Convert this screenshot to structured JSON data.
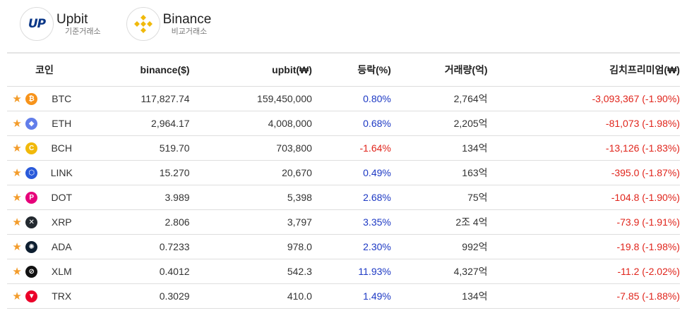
{
  "exchanges": [
    {
      "name": "Upbit",
      "sub": "기준거래소",
      "logo": "upbit-logo",
      "logo_text": "UP"
    },
    {
      "name": "Binance",
      "sub": "비교거래소",
      "logo": "binance-logo"
    }
  ],
  "table": {
    "headers": {
      "coin": "코인",
      "binance": "binance($)",
      "upbit": "upbit(₩)",
      "change": "등락(%)",
      "volume": "거래량(억)",
      "premium": "김치프리미엄(₩)"
    },
    "rows": [
      {
        "symbol": "BTC",
        "icon": "btc-icon",
        "icon_color": "#f7931a",
        "glyph": "₿",
        "binance": "117,827.74",
        "upbit": "159,450,000",
        "change": "0.80%",
        "change_dir": "pos",
        "volume": "2,764억",
        "premium": "-3,093,367 (-1.90%)"
      },
      {
        "symbol": "ETH",
        "icon": "eth-icon",
        "icon_color": "#627eea",
        "glyph": "◆",
        "binance": "2,964.17",
        "upbit": "4,008,000",
        "change": "0.68%",
        "change_dir": "pos",
        "volume": "2,205억",
        "premium": "-81,073 (-1.98%)"
      },
      {
        "symbol": "BCH",
        "icon": "bch-icon",
        "icon_color": "#f1b90b",
        "glyph": "C",
        "binance": "519.70",
        "upbit": "703,800",
        "change": "-1.64%",
        "change_dir": "neg",
        "volume": "134억",
        "premium": "-13,126 (-1.83%)"
      },
      {
        "symbol": "LINK",
        "icon": "link-icon",
        "icon_color": "#2a5ada",
        "glyph": "⬡",
        "binance": "15.270",
        "upbit": "20,670",
        "change": "0.49%",
        "change_dir": "pos",
        "volume": "163억",
        "premium": "-395.0 (-1.87%)"
      },
      {
        "symbol": "DOT",
        "icon": "dot-icon",
        "icon_color": "#e6007a",
        "glyph": "P",
        "binance": "3.989",
        "upbit": "5,398",
        "change": "2.68%",
        "change_dir": "pos",
        "volume": "75억",
        "premium": "-104.8 (-1.90%)"
      },
      {
        "symbol": "XRP",
        "icon": "xrp-icon",
        "icon_color": "#23292f",
        "glyph": "✕",
        "binance": "2.806",
        "upbit": "3,797",
        "change": "3.35%",
        "change_dir": "pos",
        "volume": "2조 4억",
        "premium": "-73.9 (-1.91%)"
      },
      {
        "symbol": "ADA",
        "icon": "ada-icon",
        "icon_color": "#0d1e30",
        "glyph": "✺",
        "binance": "0.7233",
        "upbit": "978.0",
        "change": "2.30%",
        "change_dir": "pos",
        "volume": "992억",
        "premium": "-19.8 (-1.98%)"
      },
      {
        "symbol": "XLM",
        "icon": "xlm-icon",
        "icon_color": "#111111",
        "glyph": "⊘",
        "binance": "0.4012",
        "upbit": "542.3",
        "change": "11.93%",
        "change_dir": "pos",
        "volume": "4,327억",
        "premium": "-11.2 (-2.02%)"
      },
      {
        "symbol": "TRX",
        "icon": "trx-icon",
        "icon_color": "#eb0029",
        "glyph": "▼",
        "binance": "0.3029",
        "upbit": "410.0",
        "change": "1.49%",
        "change_dir": "pos",
        "volume": "134억",
        "premium": "-7.85 (-1.88%)"
      }
    ]
  },
  "colors": {
    "positive": "#1d39c4",
    "negative": "#e0241b",
    "star": "#f39c2b",
    "upbit_brand": "#093687",
    "binance_brand": "#f0b90b"
  }
}
